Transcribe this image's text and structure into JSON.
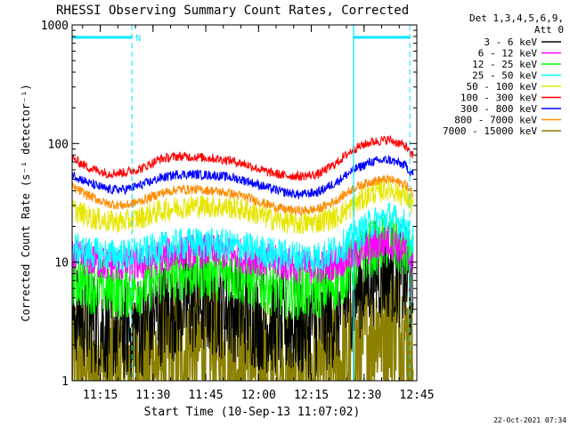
{
  "page": {
    "date_stamp": "22-Oct-2021 07:34"
  },
  "colors": {
    "background": "#ffffff",
    "axis": "#000000",
    "attenuator": "#00e5ff",
    "nightline": "#00e5ff"
  },
  "chart_data": {
    "type": "line",
    "title": "RHESSI Observing Summary Count Rates, Corrected",
    "xlabel": "Start Time (10-Sep-13 11:07:02)",
    "ylabel": "Corrected Count Rate (s⁻¹ detector⁻¹)",
    "yscale": "log",
    "ylim": [
      1,
      1000
    ],
    "xlim_min": [
      0,
      98
    ],
    "x_unit": "minutes after 11:07:02 UT",
    "x_ticks": [
      {
        "t": 8,
        "label": "11:15"
      },
      {
        "t": 23,
        "label": "11:30"
      },
      {
        "t": 38,
        "label": "11:45"
      },
      {
        "t": 53,
        "label": "12:00"
      },
      {
        "t": 68,
        "label": "12:15"
      },
      {
        "t": 83,
        "label": "12:30"
      },
      {
        "t": 98,
        "label": "12:45"
      }
    ],
    "y_ticks": [
      {
        "v": 1,
        "label": "1"
      },
      {
        "v": 10,
        "label": "10"
      },
      {
        "v": 100,
        "label": "100"
      },
      {
        "v": 1000,
        "label": "1000"
      }
    ],
    "legend": {
      "placement": "right",
      "header": [
        "Det 1,3,4,5,6,9,",
        "Att 0"
      ]
    },
    "annotations": {
      "attenuator_label": "N",
      "segments": [
        {
          "t0": 0,
          "t1": 17
        },
        {
          "t0": 80,
          "t1": 96
        }
      ],
      "dashed_t": [
        17,
        96
      ],
      "solid_t": [
        80
      ]
    },
    "series": [
      {
        "name": "3 - 6 keV",
        "color": "#000000",
        "x": [
          0,
          5,
          10,
          15,
          20,
          25,
          30,
          35,
          40,
          45,
          50,
          55,
          60,
          65,
          70,
          75,
          80,
          85,
          90,
          95,
          96,
          97
        ],
        "y": [
          4.0,
          3.2,
          2.8,
          2.7,
          3.0,
          3.7,
          4.2,
          4.5,
          4.4,
          4.1,
          3.6,
          3.2,
          3.0,
          2.9,
          3.0,
          3.6,
          5.5,
          8.0,
          9.0,
          7.0,
          5.5,
          5.0
        ],
        "noise": 0.45
      },
      {
        "name": "6 - 12 keV",
        "color": "#ff00ff",
        "x": [
          0,
          5,
          10,
          15,
          20,
          25,
          30,
          35,
          40,
          45,
          50,
          55,
          60,
          65,
          70,
          75,
          80,
          85,
          90,
          95,
          96,
          97
        ],
        "y": [
          11,
          10.5,
          9.5,
          9.5,
          9.6,
          11,
          12,
          12.5,
          12.2,
          11.8,
          11,
          10.3,
          9.6,
          9.2,
          9.0,
          10,
          11.5,
          13.5,
          15,
          12.5,
          10.5,
          10
        ],
        "noise": 0.15
      },
      {
        "name": "12 - 25 keV",
        "color": "#00ff00",
        "x": [
          0,
          5,
          10,
          15,
          20,
          25,
          30,
          35,
          40,
          45,
          50,
          55,
          60,
          65,
          70,
          75,
          80,
          85,
          90,
          95,
          96,
          97
        ],
        "y": [
          7.5,
          6.5,
          6.0,
          5.8,
          6.3,
          7.5,
          8.2,
          8.5,
          8.4,
          8.0,
          7.2,
          6.4,
          5.9,
          5.7,
          5.8,
          6.8,
          9.5,
          13,
          15,
          12,
          10,
          9.5
        ],
        "noise": 0.25
      },
      {
        "name": "25 - 50 keV",
        "color": "#00ffff",
        "x": [
          0,
          5,
          10,
          15,
          20,
          25,
          30,
          35,
          40,
          45,
          50,
          55,
          60,
          65,
          70,
          75,
          80,
          85,
          90,
          95,
          96,
          97
        ],
        "y": [
          13,
          12,
          11.5,
          11.5,
          12,
          13,
          14,
          14.5,
          14.2,
          13.8,
          13,
          12.2,
          11.5,
          11.1,
          11,
          12.5,
          16,
          21,
          24,
          20,
          16,
          15
        ],
        "noise": 0.14
      },
      {
        "name": "50 - 100 keV",
        "color": "#e6e600",
        "x": [
          0,
          5,
          10,
          15,
          20,
          25,
          30,
          35,
          40,
          45,
          50,
          55,
          60,
          65,
          70,
          75,
          80,
          85,
          90,
          95,
          96,
          97
        ],
        "y": [
          28,
          24,
          22,
          22,
          24,
          27,
          29,
          30,
          29.5,
          29,
          27,
          24,
          22,
          21,
          22,
          24,
          30,
          38,
          42,
          36,
          32,
          31
        ],
        "noise": 0.1
      },
      {
        "name": "100 - 300 keV",
        "color": "#ff0000",
        "x": [
          0,
          5,
          10,
          15,
          20,
          25,
          30,
          35,
          40,
          45,
          50,
          55,
          60,
          65,
          70,
          75,
          80,
          85,
          90,
          95,
          96,
          97
        ],
        "y": [
          75,
          62,
          56,
          57,
          62,
          74,
          78,
          77,
          75,
          72,
          66,
          58,
          54,
          53,
          55,
          68,
          90,
          103,
          108,
          95,
          82,
          80
        ],
        "noise": 0.04
      },
      {
        "name": "300 - 800 keV",
        "color": "#0000ff",
        "x": [
          0,
          5,
          10,
          15,
          20,
          25,
          30,
          35,
          40,
          45,
          50,
          55,
          60,
          65,
          70,
          75,
          80,
          85,
          90,
          95,
          96,
          97
        ],
        "y": [
          55,
          46,
          41,
          41,
          45,
          51,
          55,
          55,
          54,
          52,
          48,
          43,
          39,
          37,
          39,
          47,
          60,
          70,
          73,
          65,
          58,
          56
        ],
        "noise": 0.04
      },
      {
        "name": "800 - 7000 keV",
        "color": "#ff8c00",
        "x": [
          0,
          5,
          10,
          15,
          20,
          25,
          30,
          35,
          40,
          45,
          50,
          55,
          60,
          65,
          70,
          75,
          80,
          85,
          90,
          95,
          96,
          97
        ],
        "y": [
          43,
          36,
          31,
          30,
          33,
          38,
          41,
          41,
          40,
          38,
          35,
          31,
          28,
          27,
          28,
          33,
          42,
          48,
          50,
          45,
          40,
          38
        ],
        "noise": 0.04
      },
      {
        "name": "7000 - 15000 keV",
        "color": "#8c8000",
        "x": [
          0,
          5,
          10,
          15,
          20,
          25,
          30,
          35,
          40,
          45,
          50,
          55,
          60,
          65,
          70,
          75,
          80,
          85,
          90,
          95,
          96,
          97
        ],
        "y": [
          1.5,
          1.3,
          1.2,
          1.2,
          1.3,
          1.6,
          1.8,
          1.9,
          1.8,
          1.6,
          1.4,
          1.3,
          1.2,
          1.2,
          1.2,
          1.3,
          1.6,
          2.7,
          3.2,
          2.6,
          1.6,
          1.5
        ],
        "noise": 0.6
      }
    ]
  }
}
